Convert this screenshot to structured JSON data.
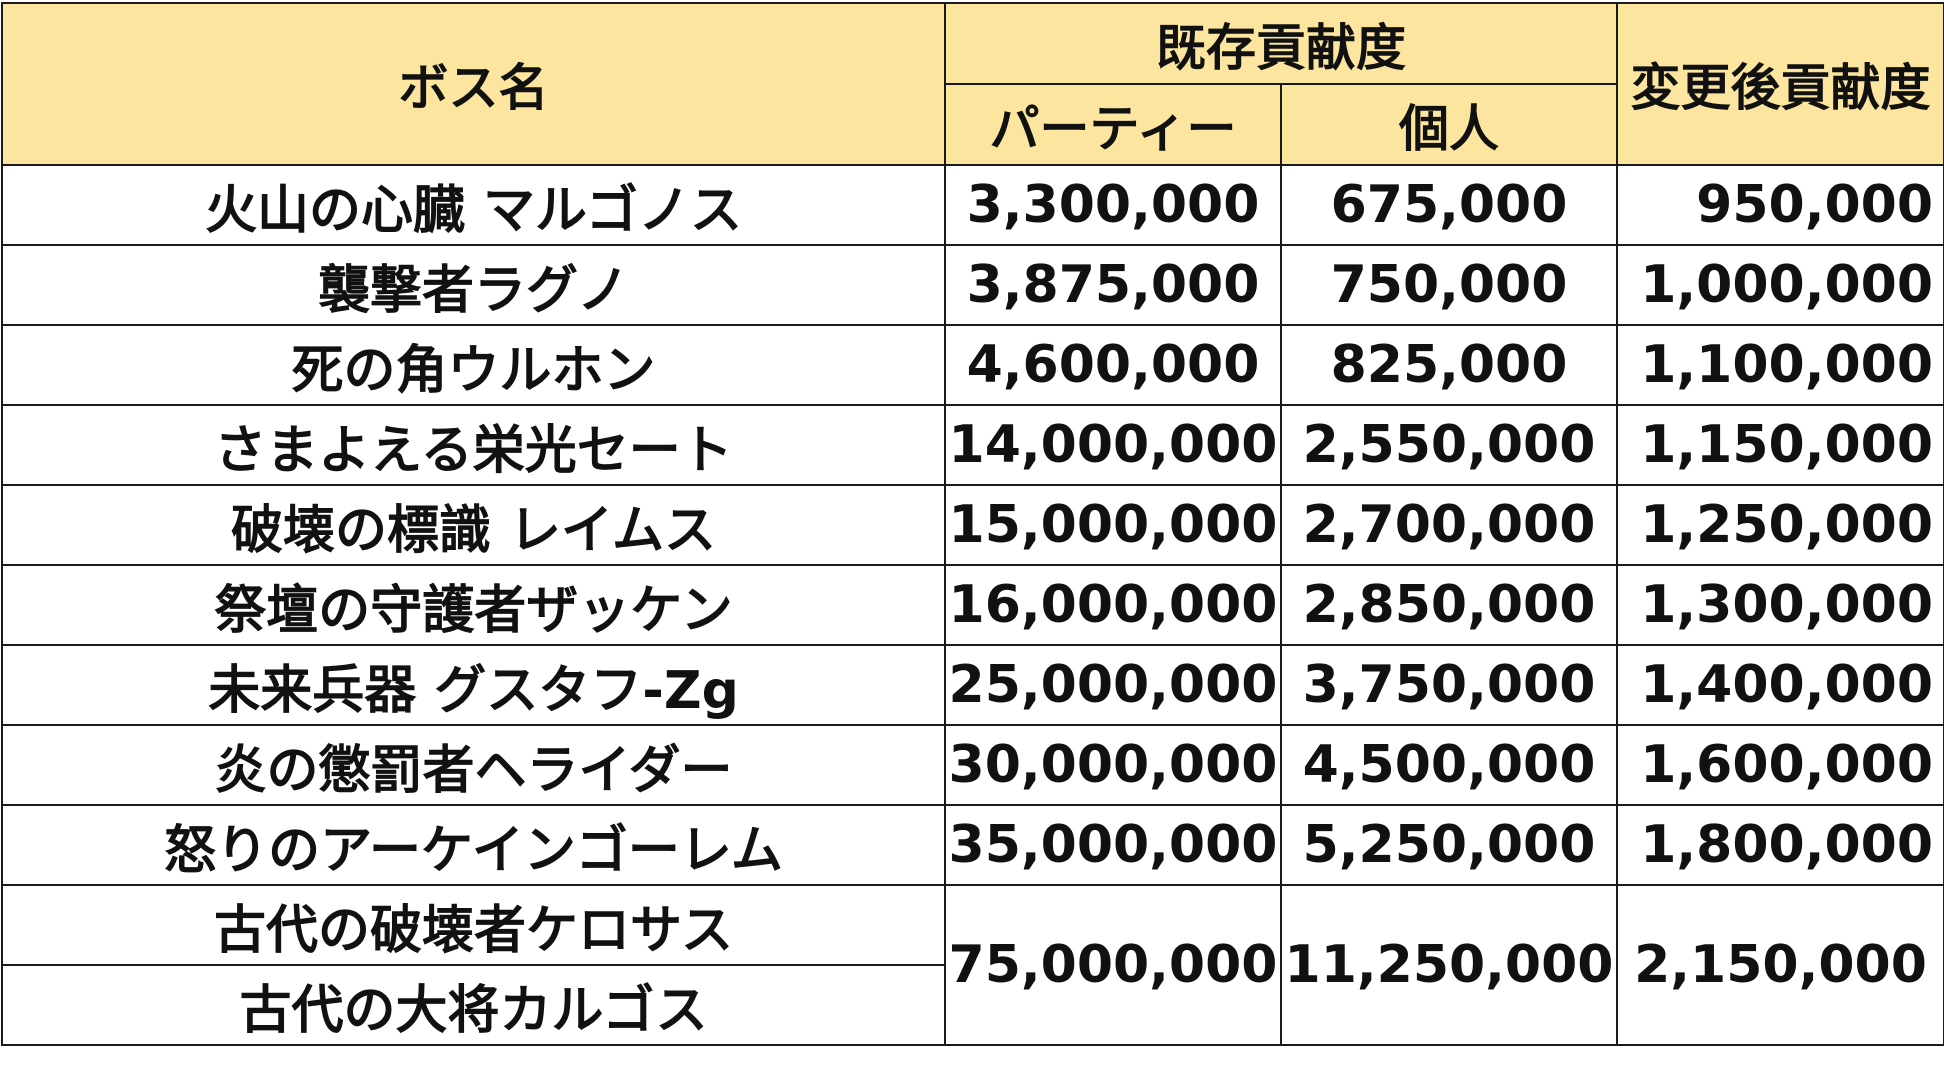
{
  "header": {
    "boss_name": "ボス名",
    "existing_contribution": "既存貢献度",
    "party": "パーティー",
    "individual": "個人",
    "changed_contribution": "変更後貢献度"
  },
  "rows": [
    {
      "boss": "火山の心臓 マルゴノス",
      "party": "3,300,000",
      "individual": "675,000",
      "changed": "950,000"
    },
    {
      "boss": "襲撃者ラグノ",
      "party": "3,875,000",
      "individual": "750,000",
      "changed": "1,000,000"
    },
    {
      "boss": "死の角ウルホン",
      "party": "4,600,000",
      "individual": "825,000",
      "changed": "1,100,000"
    },
    {
      "boss": "さまよえる栄光セート",
      "party": "14,000,000",
      "individual": "2,550,000",
      "changed": "1,150,000"
    },
    {
      "boss": "破壊の標識 レイムス",
      "party": "15,000,000",
      "individual": "2,700,000",
      "changed": "1,250,000"
    },
    {
      "boss": "祭壇の守護者ザッケン",
      "party": "16,000,000",
      "individual": "2,850,000",
      "changed": "1,300,000"
    },
    {
      "boss": "未来兵器 グスタフ-Zg",
      "party": "25,000,000",
      "individual": "3,750,000",
      "changed": "1,400,000"
    },
    {
      "boss": "炎の懲罰者ヘライダー",
      "party": "30,000,000",
      "individual": "4,500,000",
      "changed": "1,600,000"
    },
    {
      "boss": "怒りのアーケインゴーレム",
      "party": "35,000,000",
      "individual": "5,250,000",
      "changed": "1,800,000"
    }
  ],
  "merged_row": {
    "boss_1": "古代の破壊者ケロサス",
    "boss_2": "古代の大将カルゴス",
    "party": "75,000,000",
    "individual": "11,250,000",
    "changed": "2,150,000"
  }
}
